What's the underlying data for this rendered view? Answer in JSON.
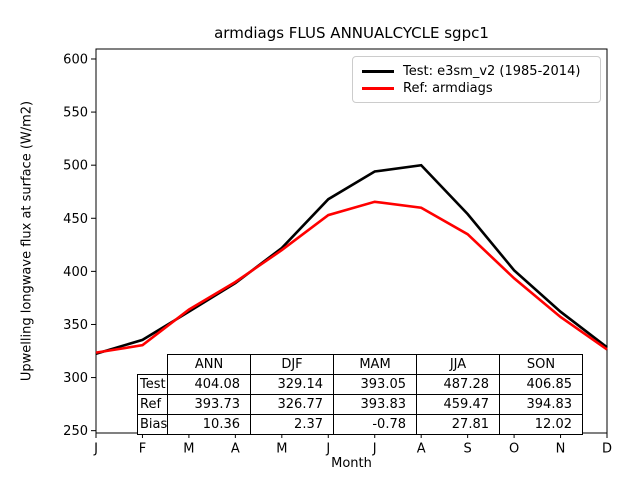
{
  "title": "armdiags FLUS ANNUALCYCLE sgpc1",
  "chart_data": {
    "type": "line",
    "title": "armdiags FLUS ANNUALCYCLE sgpc1",
    "xlabel": "Month",
    "ylabel": "Upwelling longwave flux at surface (W/m2)",
    "x_tick_labels": [
      "J",
      "F",
      "M",
      "A",
      "M",
      "J",
      "J",
      "A",
      "S",
      "O",
      "N",
      "D"
    ],
    "y_ticks": [
      250,
      300,
      350,
      400,
      450,
      500,
      550,
      600
    ],
    "ylim": [
      247.8,
      609.4
    ],
    "xlim_months": [
      0,
      11
    ],
    "grid": false,
    "legend_position": "upper right",
    "series": [
      {
        "name": "Test: e3sm_v2 (1985-2014)",
        "color": "#000000",
        "values": [
          322.5,
          335.5,
          362,
          389,
          422,
          468,
          494,
          500,
          454,
          401,
          362,
          328.5
        ]
      },
      {
        "name": "Ref: armdiags",
        "color": "#ff0000",
        "values": [
          323.5,
          330.5,
          364,
          390,
          420,
          453,
          465.5,
          460,
          435,
          393.5,
          357,
          326.5
        ]
      }
    ]
  },
  "table": {
    "columns": [
      "ANN",
      "DJF",
      "MAM",
      "JJA",
      "SON"
    ],
    "rows": [
      {
        "label": "Test",
        "values": [
          "404.08",
          "329.14",
          "393.05",
          "487.28",
          "406.85"
        ]
      },
      {
        "label": "Ref",
        "values": [
          "393.73",
          "326.77",
          "393.83",
          "459.47",
          "394.83"
        ]
      },
      {
        "label": "Bias",
        "values": [
          "10.36",
          "2.37",
          "-0.78",
          "27.81",
          "12.02"
        ]
      }
    ]
  }
}
